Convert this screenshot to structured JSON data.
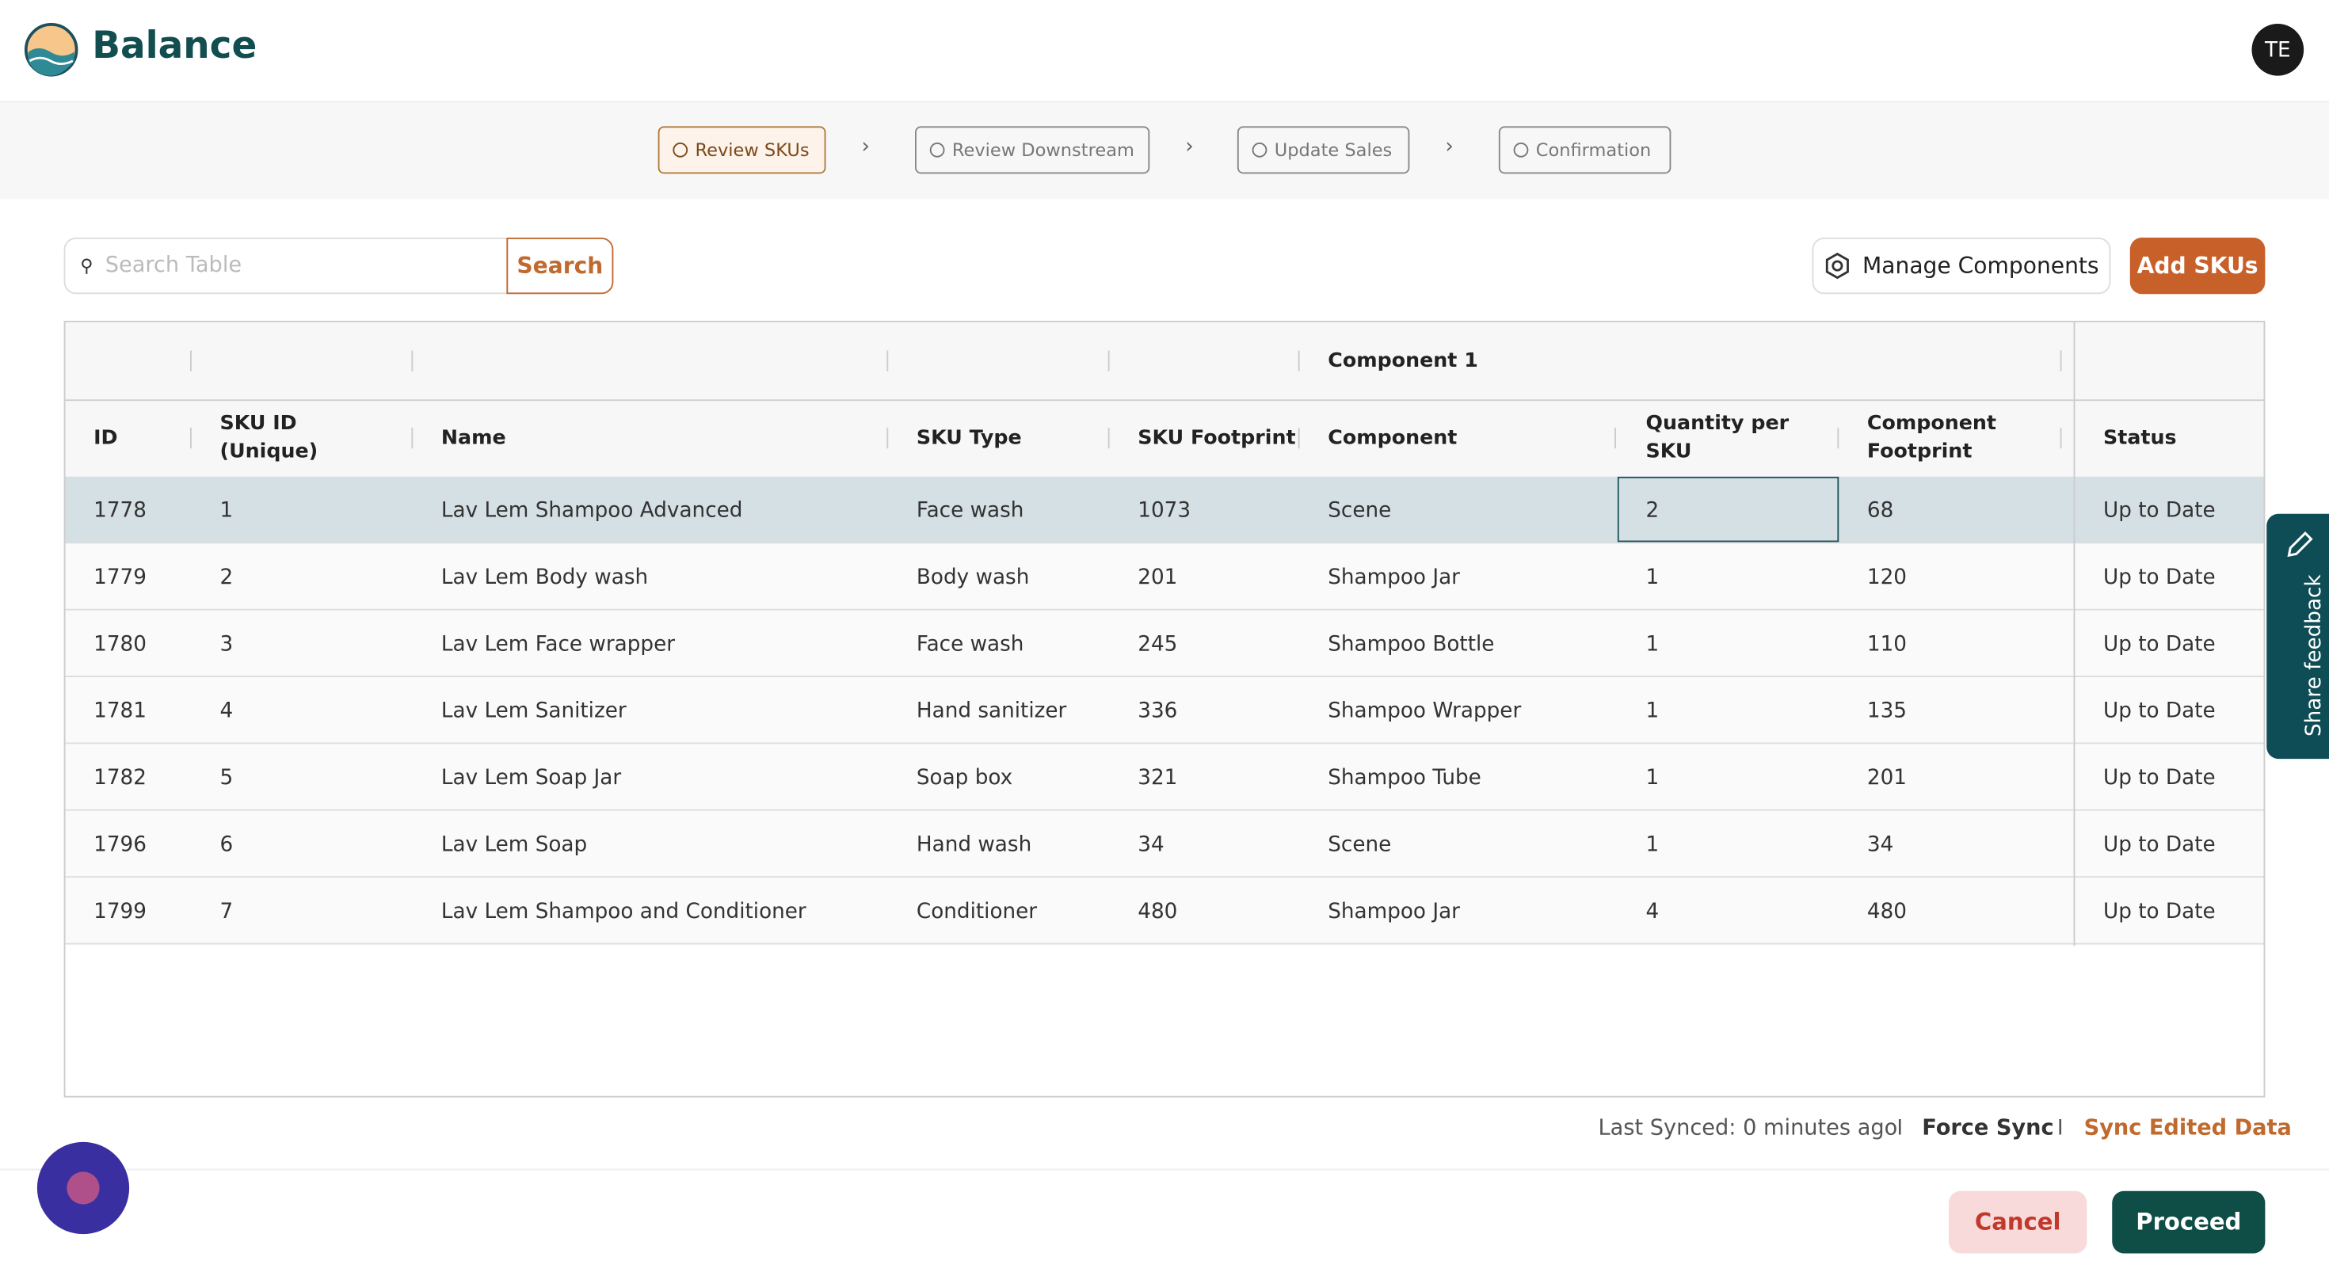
{
  "header": {
    "brand": "Balance",
    "avatar": "TE"
  },
  "steps": [
    "Review SKUs",
    "Review Downstream",
    "Update Sales",
    "Confirmation"
  ],
  "toolbar": {
    "search_placeholder": "Search Table",
    "search_button": "Search",
    "manage_button": "Manage Components",
    "add_button": "Add SKUs"
  },
  "table": {
    "group_header": "Component 1",
    "columns": [
      "ID",
      "SKU ID (Unique)",
      "Name",
      "SKU Type",
      "SKU Footprint",
      "Component",
      "Quantity per SKU",
      "Component Footprint",
      "Status"
    ],
    "rows": [
      [
        "1778",
        "1",
        "Lav Lem Shampoo Advanced",
        "Face wash",
        "1073",
        "Scene",
        "2",
        "68",
        "Up to Date"
      ],
      [
        "1779",
        "2",
        "Lav Lem Body wash",
        "Body wash",
        "201",
        "Shampoo Jar",
        "1",
        "120",
        "Up to Date"
      ],
      [
        "1780",
        "3",
        "Lav Lem Face wrapper",
        "Face wash",
        "245",
        "Shampoo Bottle",
        "1",
        "110",
        "Up to Date"
      ],
      [
        "1781",
        "4",
        "Lav Lem Sanitizer",
        "Hand sanitizer",
        "336",
        "Shampoo Wrapper",
        "1",
        "135",
        "Up to Date"
      ],
      [
        "1782",
        "5",
        "Lav Lem Soap Jar",
        "Soap box",
        "321",
        "Shampoo Tube",
        "1",
        "201",
        "Up to Date"
      ],
      [
        "1796",
        "6",
        "Lav Lem Soap",
        "Hand wash",
        "34",
        "Scene",
        "1",
        "34",
        "Up to Date"
      ],
      [
        "1799",
        "7",
        "Lav Lem Shampoo and Conditioner",
        "Conditioner",
        "480",
        "Shampoo Jar",
        "4",
        "480",
        "Up to Date"
      ]
    ]
  },
  "footer": {
    "last_synced": "Last Synced: 0 minutes ago",
    "separator": "I",
    "force_sync": "Force Sync",
    "sync_edited": "Sync Edited Data",
    "cancel": "Cancel",
    "proceed": "Proceed"
  },
  "feedback": "Share feedback"
}
